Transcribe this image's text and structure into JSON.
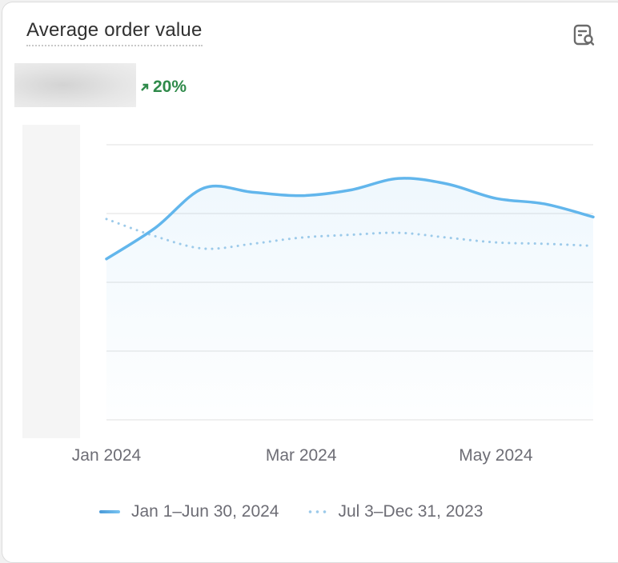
{
  "card": {
    "title": "Average order value",
    "icon": "report-search-icon",
    "delta": "20%",
    "delta_direction": "up",
    "delta_color": "#2f8a4a"
  },
  "chart_data": {
    "type": "line",
    "title": "Average order value",
    "x": [
      0,
      1,
      2,
      3,
      4,
      5,
      6,
      7,
      8,
      9,
      10
    ],
    "x_tick_labels": [
      {
        "x": 0,
        "label": "Jan 2024"
      },
      {
        "x": 4,
        "label": "Mar 2024"
      },
      {
        "x": 8,
        "label": "May 2024"
      }
    ],
    "ylim": [
      0,
      4
    ],
    "y_gridlines": [
      0,
      1,
      2,
      3,
      4
    ],
    "grid": true,
    "y_tick_labels_hidden": true,
    "series": [
      {
        "name": "Jan 1–Jun 30, 2024",
        "style": "solid",
        "color": "#62b6ec",
        "values": [
          2.34,
          2.79,
          3.37,
          3.31,
          3.26,
          3.34,
          3.51,
          3.43,
          3.22,
          3.14,
          2.95
        ]
      },
      {
        "name": "Jul 3–Dec 31, 2023",
        "style": "dotted",
        "color": "#9ccaea",
        "values": [
          2.92,
          2.67,
          2.49,
          2.56,
          2.65,
          2.69,
          2.72,
          2.65,
          2.58,
          2.56,
          2.53
        ]
      }
    ],
    "legend_position": "bottom"
  }
}
